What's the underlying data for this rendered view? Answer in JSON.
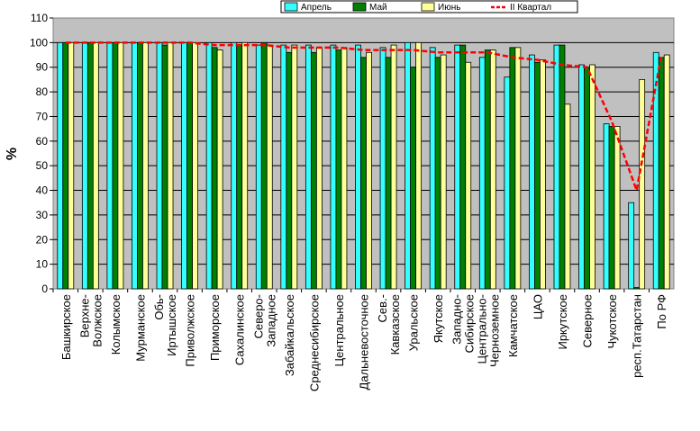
{
  "chart_data": {
    "type": "bar",
    "title": "",
    "ylabel": "%",
    "xlabel": "",
    "ylim": [
      0,
      110
    ],
    "yticks": [
      0,
      10,
      20,
      30,
      40,
      50,
      60,
      70,
      80,
      90,
      100,
      110
    ],
    "grid": "horizontal",
    "legend_position": "top-right",
    "categories": [
      "Башкирское",
      "Верхне-Волжское",
      "Колымское",
      "Мурманское",
      "Обь-Иртышское",
      "Приволжское",
      "Приморское",
      "Сахалинское",
      "Северо-Западное",
      "Забайкальское",
      "Среднесибирское",
      "Центральное",
      "Дальневосточное",
      "Сев.-Кавказское",
      "Уральское",
      "Якутское",
      "Западно-Сибирское",
      "Центрально-Черноземное",
      "Камчатское",
      "ЦАО",
      "Иркутское",
      "Северное",
      "Чукотское",
      "респ.Татарстан",
      "По РФ"
    ],
    "series": [
      {
        "name": "Апрель",
        "kind": "bar",
        "color": "#33ffff",
        "values": [
          100,
          100,
          100,
          100,
          100,
          100,
          100,
          100,
          99,
          99,
          99,
          99,
          99,
          98,
          100,
          98,
          99,
          94,
          86,
          95,
          99,
          91,
          67,
          35,
          96
        ]
      },
      {
        "name": "Май",
        "kind": "bar",
        "color": "#008000",
        "values": [
          100,
          100,
          100,
          100,
          99,
          100,
          98,
          99,
          100,
          96,
          96,
          97,
          94,
          94,
          90,
          94,
          99,
          97,
          98,
          92,
          99,
          90,
          66,
          0.5,
          94
        ]
      },
      {
        "name": "Июнь",
        "kind": "bar",
        "color": "#ffff99",
        "values": [
          100,
          100,
          100,
          100,
          100,
          100,
          97,
          100,
          99,
          99,
          98,
          98,
          96,
          99,
          100,
          95,
          92,
          97,
          98,
          93,
          75,
          91,
          66,
          85,
          95
        ]
      },
      {
        "name": "II Квартал",
        "kind": "line",
        "color": "#ff0000",
        "values": [
          100,
          100,
          100,
          100,
          100,
          100,
          99,
          99,
          99,
          98,
          98,
          98,
          97,
          97,
          97,
          96,
          96,
          96,
          94,
          93,
          91,
          90,
          68,
          40,
          95
        ]
      }
    ]
  }
}
